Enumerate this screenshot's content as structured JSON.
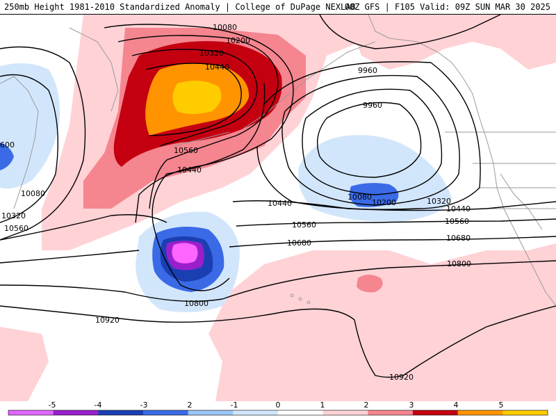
{
  "header": {
    "title_left": "250mb Height 1981-2010 Standardized Anomaly | College of DuPage NEXLAB",
    "title_right": "00Z GFS | F105 Valid: 09Z SUN MAR 30 2025"
  },
  "contour_labels": [
    "10080",
    "10200",
    "10320",
    "10440",
    "10560",
    "9960",
    "9960",
    "10440",
    "10080",
    "10200",
    "10320",
    "10440",
    "10560",
    "10680",
    "10800",
    "10800",
    "10920",
    "10920",
    "600",
    "10080",
    "10320",
    "10560"
  ],
  "colorbar": {
    "ticks": [
      "-5",
      "-4",
      "-3",
      "2",
      "-1",
      "0",
      "1",
      "2",
      "3",
      "4",
      "5"
    ],
    "colors": [
      "#e066ff",
      "#9a1fcc",
      "#1a3fb3",
      "#3a6ae6",
      "#9cc6f5",
      "#d2e6fb",
      "#ffffff",
      "#ffd2d6",
      "#f5858f",
      "#c40010",
      "#ff9400",
      "#ffcc00"
    ]
  },
  "palette": {
    "neg1": "#d2e6fb",
    "neg2": "#3a6ae6",
    "neg3": "#1a3fb3",
    "neg4": "#9a1fcc",
    "neg5": "#ff66ff",
    "pos1": "#ffd2d6",
    "pos2": "#f5858f",
    "pos3": "#c40010",
    "pos4": "#ff9400",
    "pos5": "#ffcc00",
    "coast": "#aaaaaa",
    "contour": "#000000"
  }
}
